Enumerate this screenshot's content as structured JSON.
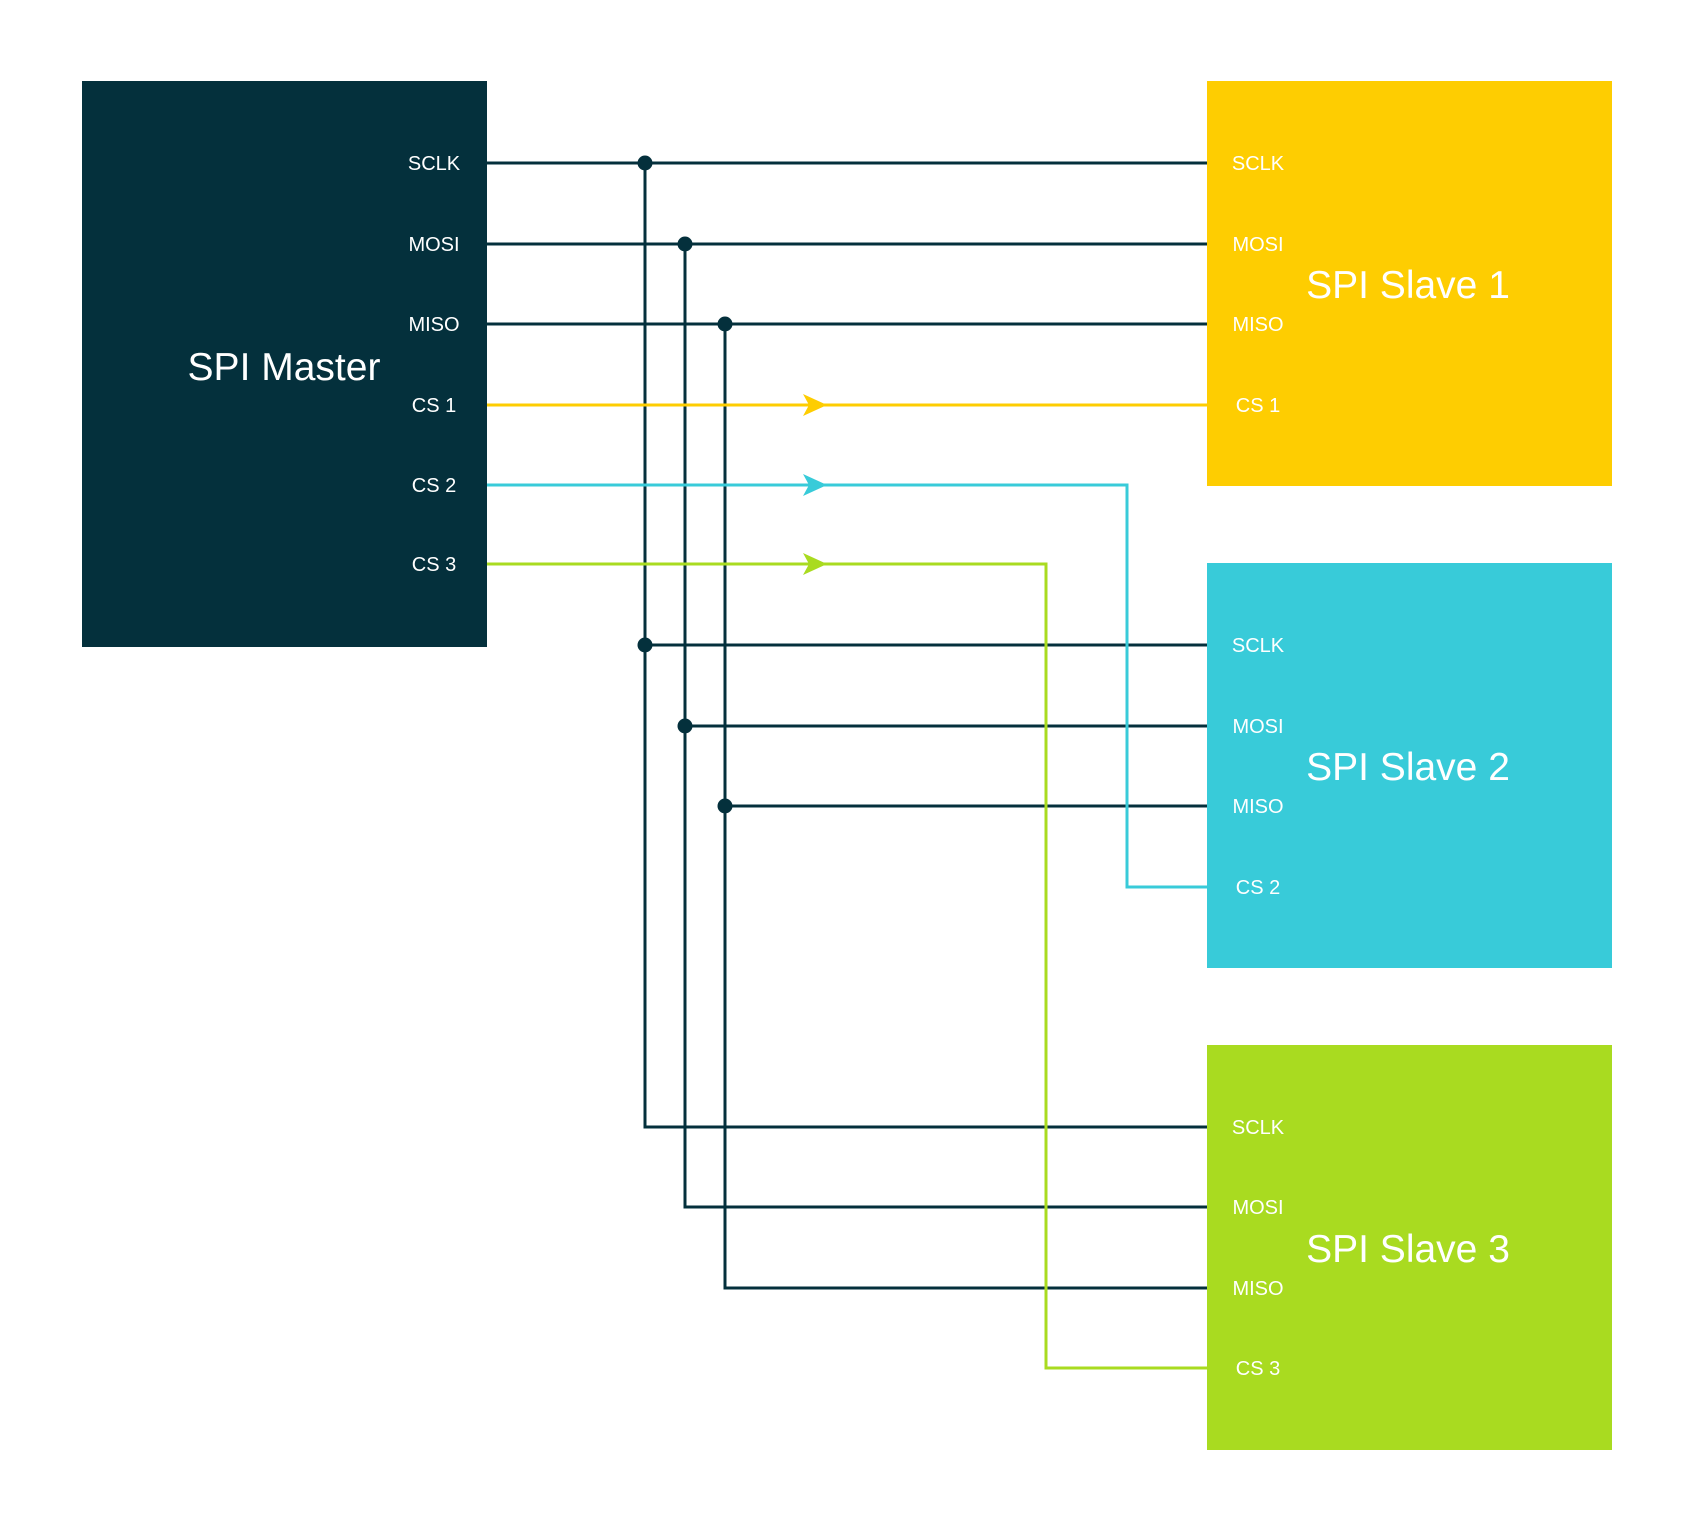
{
  "colors": {
    "master": "#04303c",
    "slave1": "#fecd01",
    "slave2": "#38cbd9",
    "slave3": "#a9db20",
    "bus_line": "#04303c",
    "text": "#ffffff",
    "background": "#ffffff"
  },
  "master": {
    "title": "SPI Master",
    "pins": [
      "SCLK",
      "MOSI",
      "MISO",
      "CS 1",
      "CS 2",
      "CS 3"
    ]
  },
  "slaves": [
    {
      "title": "SPI Slave 1",
      "pins": [
        "SCLK",
        "MOSI",
        "MISO",
        "CS 1"
      ]
    },
    {
      "title": "SPI Slave 2",
      "pins": [
        "SCLK",
        "MOSI",
        "MISO",
        "CS 2"
      ]
    },
    {
      "title": "SPI Slave 3",
      "pins": [
        "SCLK",
        "MOSI",
        "MISO",
        "CS 3"
      ]
    }
  ]
}
